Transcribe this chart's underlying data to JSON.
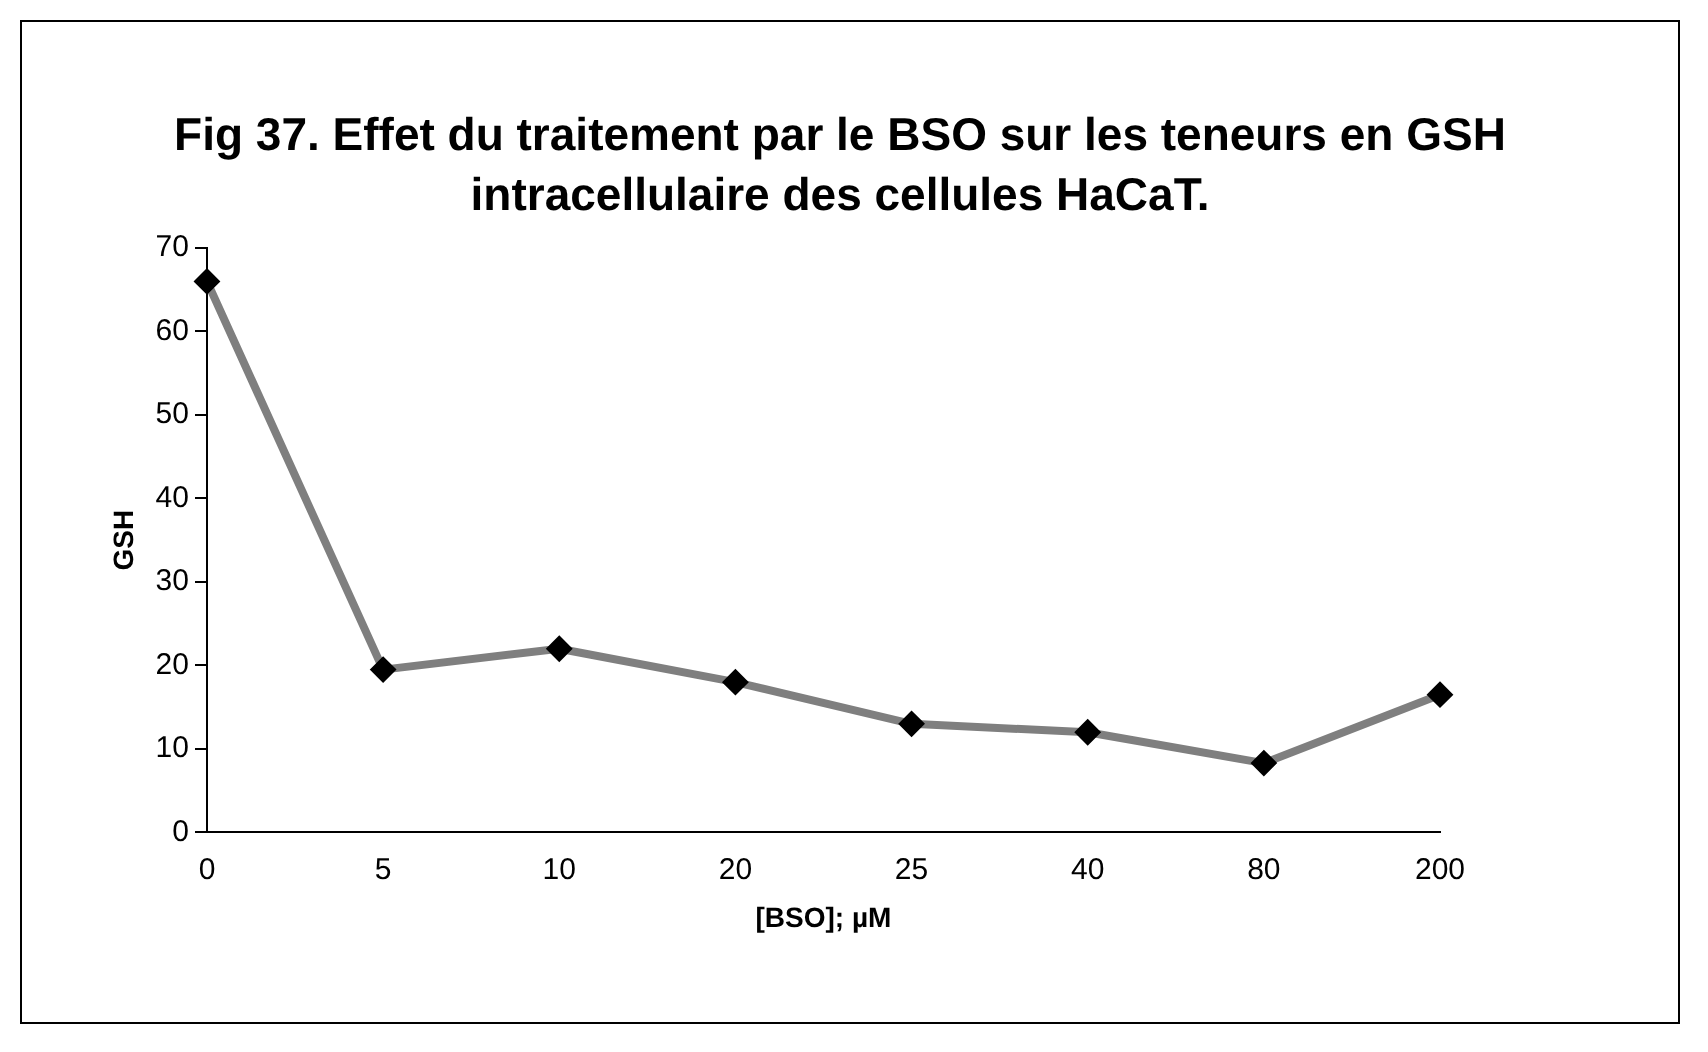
{
  "chart_data": {
    "type": "line",
    "title": "Fig 37. Effet du traitement par le BSO sur les teneurs en GSH intracellulaire des cellules HaCaT.",
    "xlabel": "[BSO]; µM",
    "ylabel": "GSH",
    "categories": [
      "0",
      "5",
      "10",
      "20",
      "25",
      "40",
      "80",
      "200"
    ],
    "series": [
      {
        "color": "#7f7f7f",
        "values": [
          66,
          19.5,
          22,
          18,
          13,
          12,
          8.3,
          16.5
        ]
      }
    ],
    "ylim": [
      0,
      70
    ],
    "yticks": [
      0,
      10,
      20,
      30,
      40,
      50,
      60,
      70
    ],
    "grid": false,
    "legend": false,
    "marker": "diamond",
    "line_style": "solid"
  }
}
